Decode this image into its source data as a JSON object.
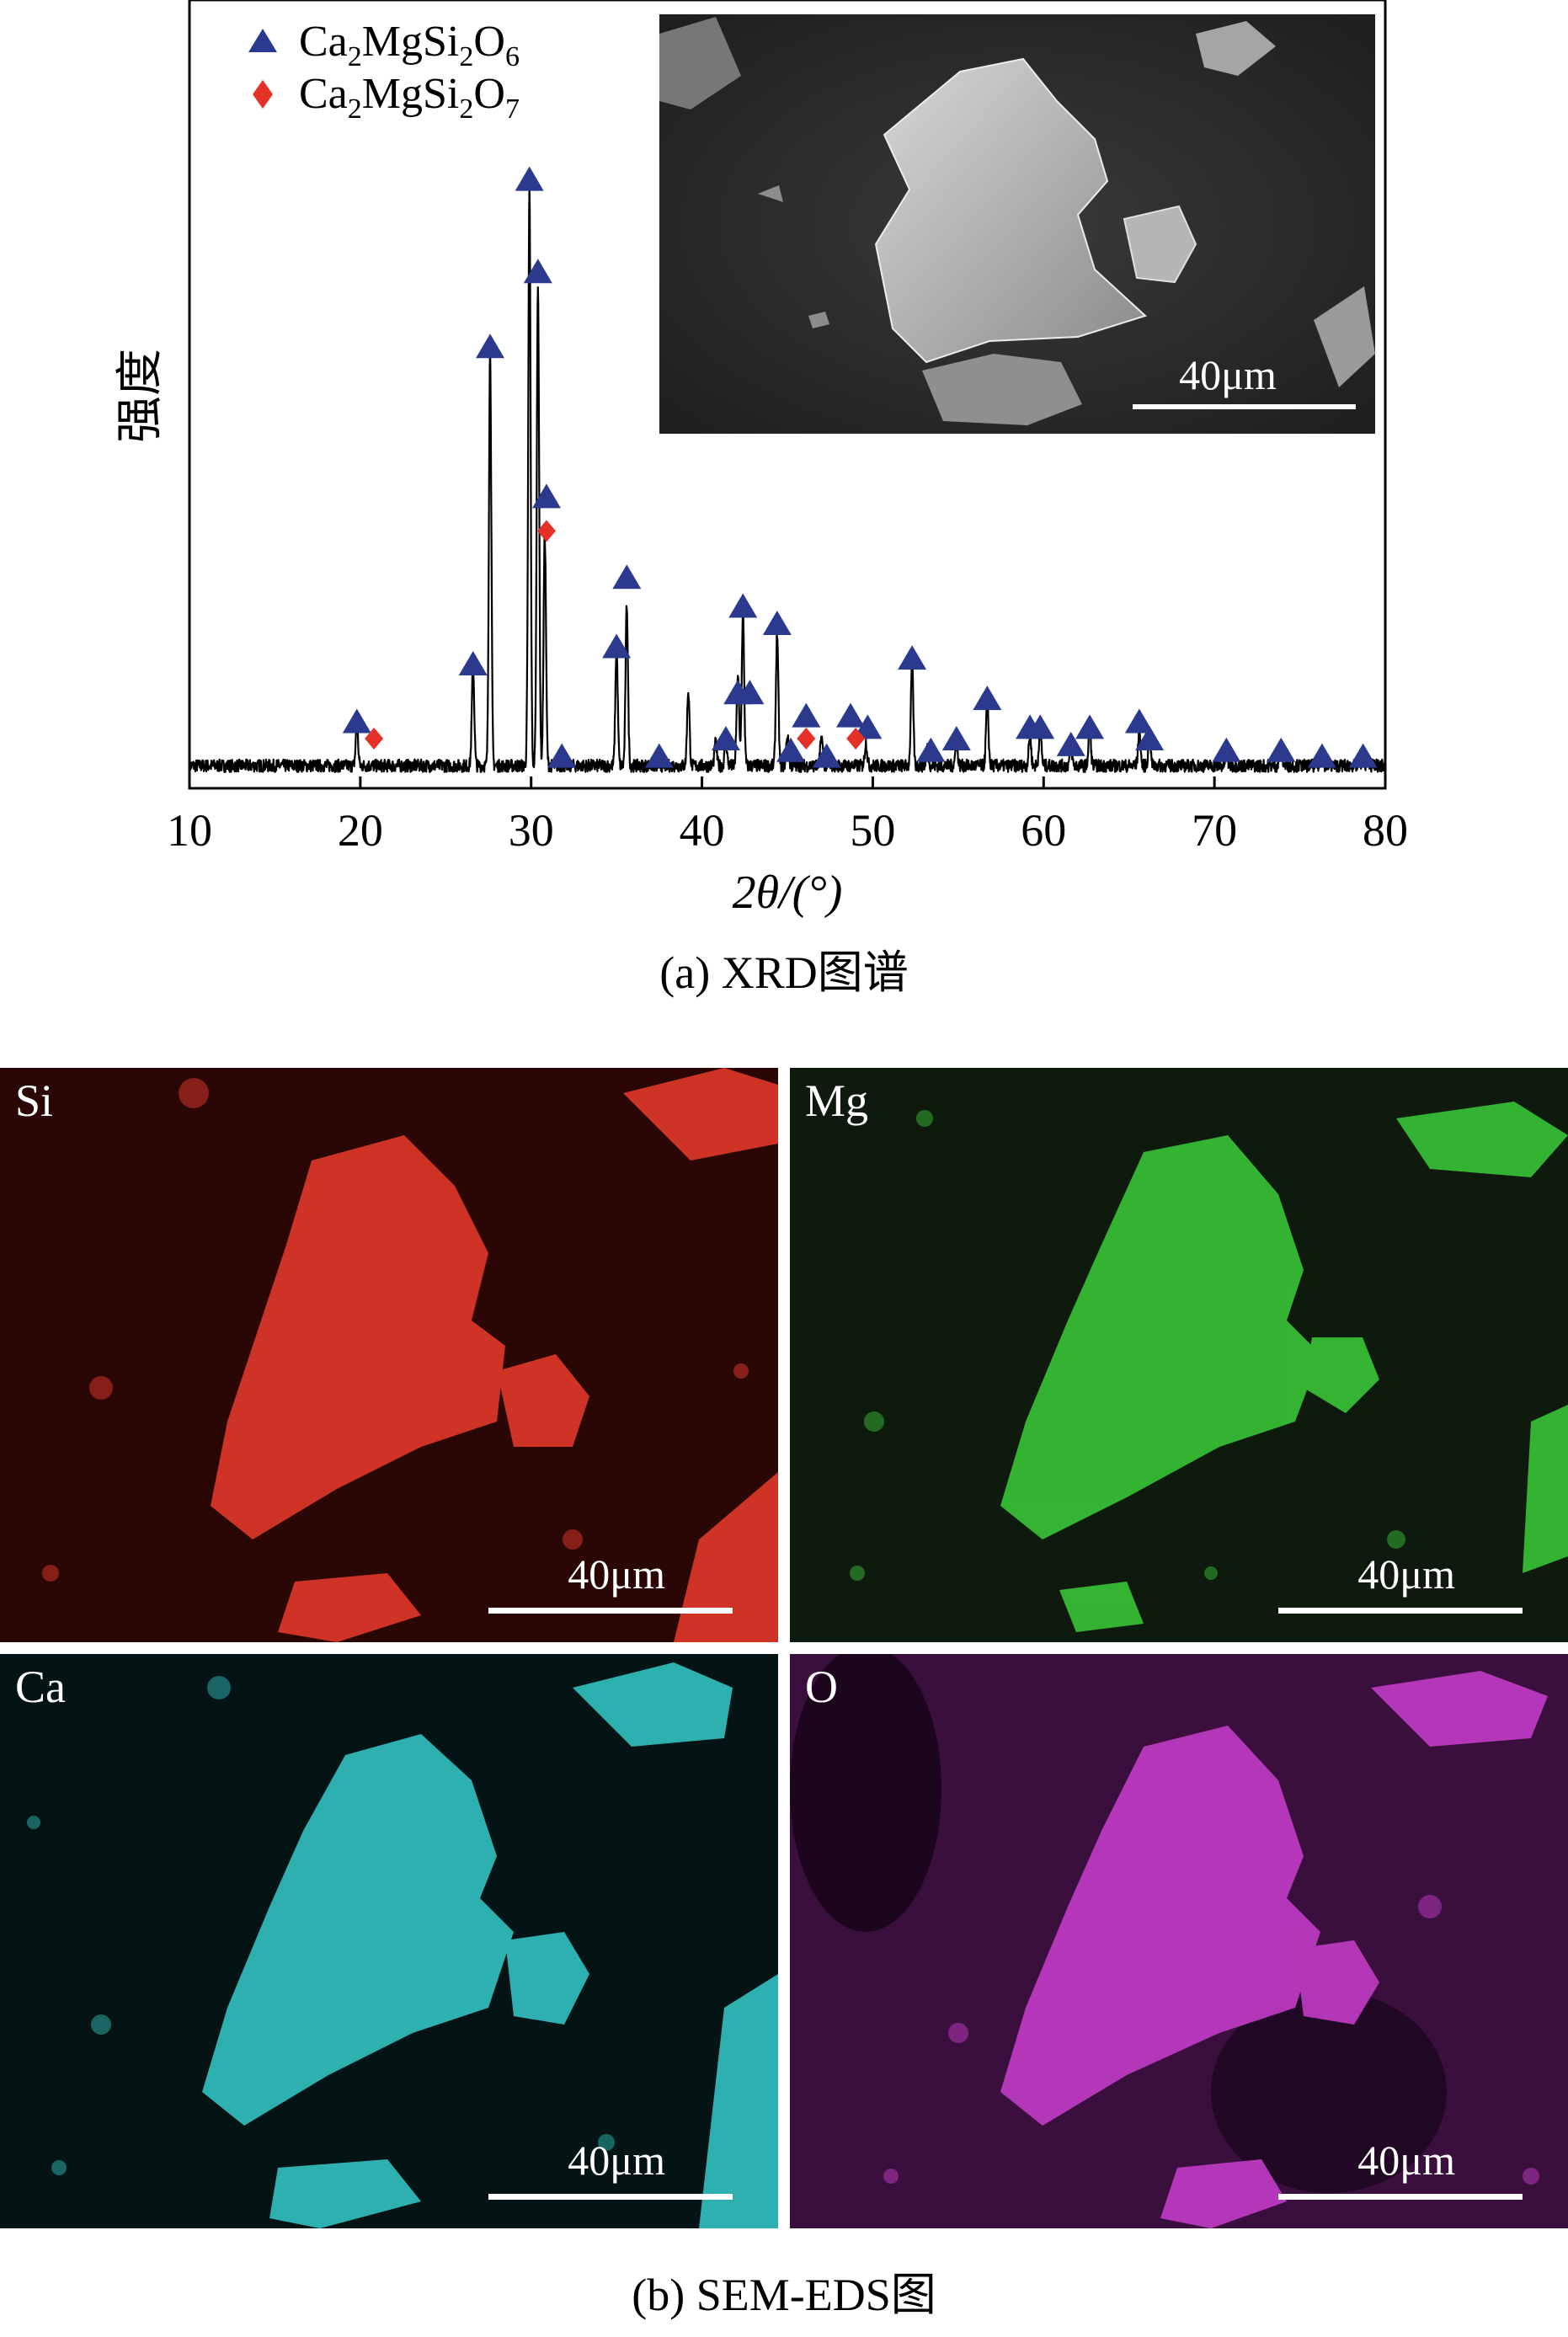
{
  "chart_data": {
    "type": "line",
    "title": "",
    "xlabel": "2θ/(°)",
    "ylabel": "强度",
    "xlim": [
      10,
      80
    ],
    "xticks": [
      10,
      20,
      30,
      40,
      50,
      60,
      70,
      80
    ],
    "ylim": [
      0,
      100
    ],
    "grid": false,
    "legend_position": "top-left",
    "legend": [
      {
        "name": "Ca2MgSi2O6",
        "marker": "triangle",
        "color": "#2b3a8f"
      },
      {
        "name": "Ca2MgSi2O7",
        "marker": "diamond",
        "color": "#e53027"
      }
    ],
    "series": [
      {
        "name": "XRD",
        "color": "#000000",
        "peaks": [
          [
            19.8,
            7
          ],
          [
            26.6,
            17
          ],
          [
            27.6,
            72
          ],
          [
            29.9,
            100
          ],
          [
            30.4,
            84
          ],
          [
            30.8,
            40
          ],
          [
            35.0,
            20
          ],
          [
            35.6,
            28
          ],
          [
            39.2,
            13
          ],
          [
            40.8,
            4
          ],
          [
            41.4,
            4
          ],
          [
            42.1,
            16
          ],
          [
            42.4,
            26
          ],
          [
            44.4,
            23
          ],
          [
            45.0,
            5
          ],
          [
            47.0,
            5
          ],
          [
            49.6,
            4
          ],
          [
            52.3,
            18
          ],
          [
            53.2,
            3
          ],
          [
            54.9,
            4
          ],
          [
            56.7,
            11
          ],
          [
            59.2,
            5
          ],
          [
            59.8,
            7
          ],
          [
            61.6,
            3
          ],
          [
            62.7,
            6
          ],
          [
            65.6,
            6
          ],
          [
            66.2,
            5
          ],
          [
            70.7,
            2
          ],
          [
            73.9,
            3
          ],
          [
            76.3,
            2
          ],
          [
            78.7,
            2
          ]
        ]
      }
    ],
    "markers_Ca2MgSi2O6": [
      [
        19.8,
        10
      ],
      [
        26.6,
        20
      ],
      [
        27.6,
        75
      ],
      [
        29.9,
        104
      ],
      [
        30.4,
        88
      ],
      [
        30.9,
        49
      ],
      [
        31.8,
        4
      ],
      [
        35.0,
        23
      ],
      [
        35.6,
        35
      ],
      [
        37.5,
        4
      ],
      [
        41.4,
        7
      ],
      [
        42.1,
        15
      ],
      [
        42.4,
        30
      ],
      [
        42.8,
        15
      ],
      [
        44.4,
        27
      ],
      [
        45.2,
        5
      ],
      [
        46.1,
        11
      ],
      [
        47.3,
        4
      ],
      [
        48.7,
        11
      ],
      [
        49.7,
        9
      ],
      [
        52.3,
        21
      ],
      [
        53.4,
        5
      ],
      [
        54.9,
        7
      ],
      [
        56.7,
        14
      ],
      [
        59.2,
        9
      ],
      [
        59.8,
        9
      ],
      [
        61.6,
        6
      ],
      [
        62.7,
        9
      ],
      [
        65.6,
        10
      ],
      [
        66.2,
        7
      ],
      [
        70.7,
        5
      ],
      [
        73.9,
        5
      ],
      [
        76.3,
        4
      ],
      [
        78.7,
        4
      ]
    ],
    "markers_Ca2MgSi2O7": [
      [
        20.8,
        7
      ],
      [
        30.9,
        43
      ],
      [
        46.1,
        7
      ],
      [
        49.0,
        7
      ]
    ],
    "inset_scale_label": "40μm"
  },
  "captions": {
    "a": "(a) XRD图谱",
    "b": "(b) SEM-EDS图"
  },
  "eds_maps": [
    {
      "element": "Si",
      "color": "#e0382a",
      "scale_label": "40μm"
    },
    {
      "element": "Mg",
      "color": "#3ccf3a",
      "scale_label": "40μm"
    },
    {
      "element": "Ca",
      "color": "#35c6c6",
      "scale_label": "40μm"
    },
    {
      "element": "O",
      "color": "#c23cc6",
      "scale_label": "40μm"
    }
  ]
}
